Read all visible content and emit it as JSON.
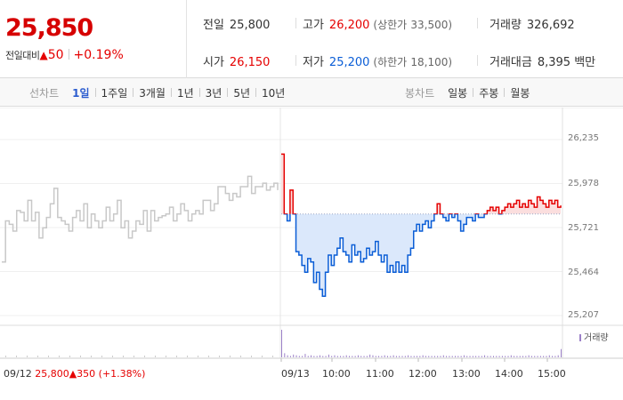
{
  "price": {
    "current": "25,850",
    "change_label": "전일대비",
    "change_arrow": "▲",
    "change_amount": "50",
    "change_percent": "+0.19%"
  },
  "stats": {
    "prev_close_label": "전일",
    "prev_close": "25,800",
    "high_label": "고가",
    "high": "26,200",
    "upper_limit_label": "(상한가",
    "upper_limit": "33,500)",
    "volume_label": "거래량",
    "volume": "326,692",
    "open_label": "시가",
    "open": "26,150",
    "low_label": "저가",
    "low": "25,200",
    "lower_limit_label": "(하한가",
    "lower_limit": "18,100)",
    "turnover_label": "거래대금",
    "turnover": "8,395 백만"
  },
  "tabs": {
    "line_head": "선차트",
    "line_items": [
      "1일",
      "1주일",
      "3개월",
      "1년",
      "3년",
      "5년",
      "10년"
    ],
    "line_active": 0,
    "candle_head": "봉차트",
    "candle_items": [
      "일봉",
      "주봉",
      "월봉"
    ]
  },
  "colors": {
    "up": "#e50000",
    "down": "#0a5dd6",
    "prev_day_line": "#c8c8c8",
    "fill_down": "#dbe8fb",
    "fill_up": "#fbdede",
    "volume": "#9b80c8"
  },
  "chart_data": {
    "type": "line",
    "y_ticks": [
      "26,235",
      "25,978",
      "25,721",
      "25,464",
      "25,207"
    ],
    "ylim": [
      25207,
      26235
    ],
    "x_ticks": [
      "09/13",
      "10:00",
      "11:00",
      "12:00",
      "13:00",
      "14:00",
      "15:00"
    ],
    "prev_day": {
      "date": "09/12",
      "close": "25,800",
      "arrow": "▲",
      "change": "350",
      "change_pct": "(+1.38%)",
      "values": [
        25520,
        25760,
        25740,
        25700,
        25820,
        25810,
        25760,
        25880,
        25760,
        25810,
        25660,
        25720,
        25780,
        25860,
        25950,
        25780,
        25760,
        25740,
        25700,
        25780,
        25820,
        25760,
        25860,
        25720,
        25800,
        25760,
        25720,
        25760,
        25840,
        25760,
        25800,
        25880,
        25720,
        25760,
        25660,
        25700,
        25760,
        25740,
        25820,
        25700,
        25820,
        25760,
        25780,
        25790,
        25800,
        25840,
        25760,
        25800,
        25860,
        25820,
        25760,
        25800,
        25820,
        25800,
        25880,
        25880,
        25820,
        25860,
        25960,
        25960,
        25920,
        25880,
        25920,
        25900,
        25960,
        25960,
        26020,
        25920,
        25960,
        25960,
        25980,
        25940,
        25960,
        25980,
        25940
      ]
    },
    "today": {
      "reference": 25800,
      "values": [
        26150,
        25800,
        25760,
        25940,
        25800,
        25580,
        25560,
        25500,
        25460,
        25540,
        25520,
        25400,
        25460,
        25360,
        25320,
        25460,
        25560,
        25500,
        25560,
        25600,
        25660,
        25580,
        25560,
        25520,
        25620,
        25560,
        25580,
        25520,
        25540,
        25600,
        25560,
        25580,
        25640,
        25560,
        25520,
        25560,
        25460,
        25500,
        25460,
        25520,
        25460,
        25500,
        25460,
        25560,
        25600,
        25700,
        25740,
        25700,
        25740,
        25760,
        25720,
        25760,
        25800,
        25860,
        25800,
        25780,
        25760,
        25800,
        25780,
        25800,
        25760,
        25700,
        25740,
        25780,
        25780,
        25760,
        25800,
        25780,
        25780,
        25800,
        25820,
        25840,
        25820,
        25840,
        25800,
        25820,
        25840,
        25860,
        25840,
        25860,
        25880,
        25840,
        25860,
        25840,
        25880,
        25860,
        25840,
        25900,
        25880,
        25860,
        25840,
        25880,
        25860,
        25880,
        25840,
        25850
      ]
    },
    "volume_label": "거래량",
    "volume_values": [
      40,
      6,
      3,
      2,
      4,
      3,
      2,
      2,
      5,
      2,
      3,
      2,
      2,
      3,
      2,
      2,
      4,
      2,
      3,
      2,
      2,
      2,
      3,
      2,
      2,
      2,
      3,
      2,
      2,
      2,
      4,
      3,
      2,
      2,
      2,
      3,
      2,
      2,
      3,
      2,
      2,
      2,
      2,
      3,
      2,
      2,
      2,
      2,
      3,
      2,
      2,
      2,
      2,
      2,
      2,
      3,
      2,
      2,
      2,
      2,
      2,
      2,
      3,
      2,
      2,
      2,
      2,
      2,
      2,
      3,
      2,
      2,
      2,
      2,
      2,
      2,
      2,
      2,
      3,
      2,
      2,
      2,
      2,
      2,
      3,
      2,
      2,
      2,
      2,
      2,
      2,
      3,
      2,
      2,
      3,
      12
    ]
  }
}
